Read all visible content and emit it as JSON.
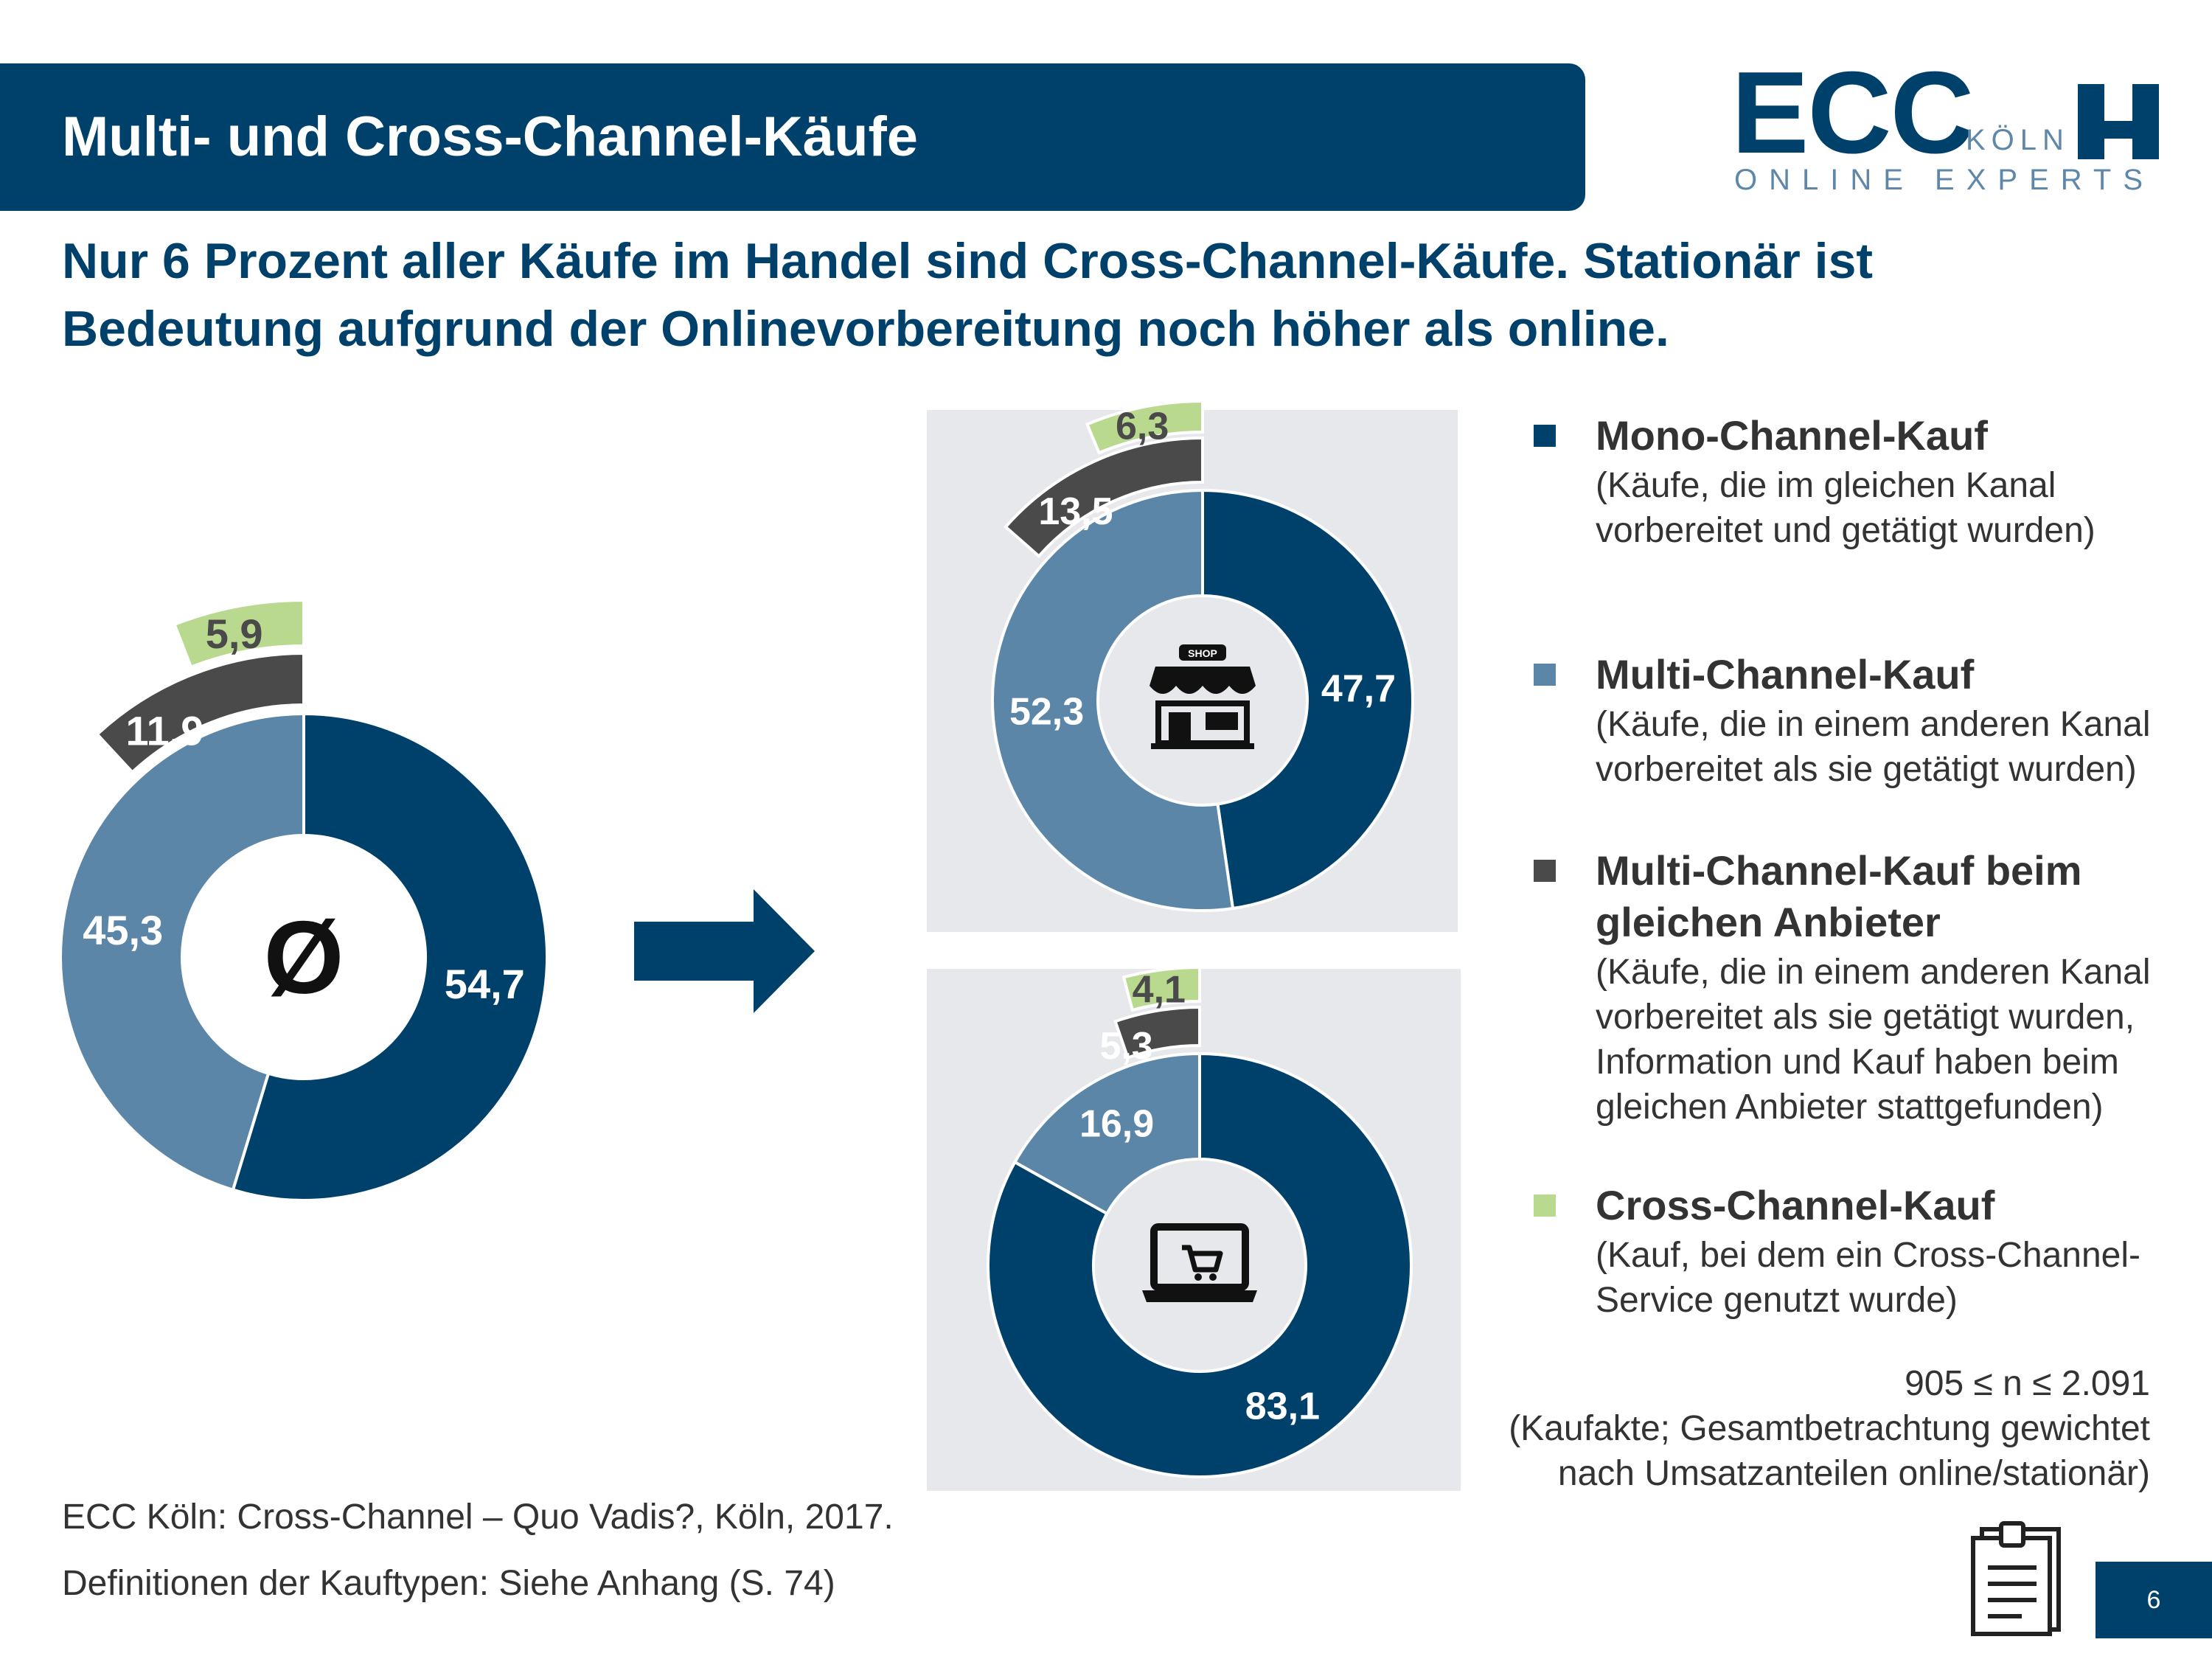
{
  "header": {
    "title": "Multi- und Cross-Channel-Käufe",
    "logo": {
      "brand": "ECC",
      "city": "KÖLN",
      "tagline": "ONLINE EXPERTS"
    }
  },
  "headline": {
    "line1": "Nur 6 Prozent aller Käufe im Handel sind Cross-Channel-Käufe. Stationär ist",
    "line2": "Bedeutung aufgrund der Onlinevorbereitung noch höher als online."
  },
  "colors": {
    "mono": "#00416b",
    "multi": "#5b86a8",
    "same_provider": "#4a4a4a",
    "cross": "#b9d98f",
    "panel": "#e6e8eb"
  },
  "chart_data": [
    {
      "type": "donut",
      "center_label": "Ø",
      "segments": [
        {
          "category": "Mono-Channel-Kauf",
          "value": 54.7,
          "label": "54,7"
        },
        {
          "category": "Multi-Channel-Kauf",
          "value": 45.3,
          "label": "45,3"
        }
      ],
      "outer_rings": [
        {
          "category": "Multi-Channel-Kauf beim gleichen Anbieter",
          "value": 11.9,
          "label": "11,9"
        },
        {
          "category": "Cross-Channel-Kauf",
          "value": 5.9,
          "label": "5,9"
        }
      ]
    },
    {
      "type": "donut",
      "center_icon": "shop-icon",
      "segments": [
        {
          "category": "Mono-Channel-Kauf",
          "value": 47.7,
          "label": "47,7"
        },
        {
          "category": "Multi-Channel-Kauf",
          "value": 52.3,
          "label": "52,3"
        }
      ],
      "outer_rings": [
        {
          "category": "Multi-Channel-Kauf beim gleichen Anbieter",
          "value": 13.5,
          "label": "13,5"
        },
        {
          "category": "Cross-Channel-Kauf",
          "value": 6.3,
          "label": "6,3"
        }
      ]
    },
    {
      "type": "donut",
      "center_icon": "laptop-cart-icon",
      "segments": [
        {
          "category": "Mono-Channel-Kauf",
          "value": 83.1,
          "label": "83,1"
        },
        {
          "category": "Multi-Channel-Kauf",
          "value": 16.9,
          "label": "16,9"
        }
      ],
      "outer_rings": [
        {
          "category": "Multi-Channel-Kauf beim gleichen Anbieter",
          "value": 5.3,
          "label": "5,3"
        },
        {
          "category": "Cross-Channel-Kauf",
          "value": 4.1,
          "label": "4,1"
        }
      ]
    }
  ],
  "legend": [
    {
      "title_lines": [
        "Mono-Channel-Kauf"
      ],
      "desc_lines": [
        "(Käufe, die im gleichen Kanal",
        "vorbereitet und getätigt wurden)"
      ]
    },
    {
      "title_lines": [
        "Multi-Channel-Kauf"
      ],
      "desc_lines": [
        "(Käufe, die in einem anderen Kanal",
        "vorbereitet als sie getätigt wurden)"
      ]
    },
    {
      "title_lines": [
        "Multi-Channel-Kauf beim",
        "gleichen Anbieter"
      ],
      "desc_lines": [
        "(Käufe, die in einem anderen Kanal",
        "vorbereitet als sie getätigt wurden,",
        "Information und Kauf haben beim",
        "gleichen Anbieter stattgefunden)"
      ]
    },
    {
      "title_lines": [
        "Cross-Channel-Kauf"
      ],
      "desc_lines": [
        "(Kauf, bei dem ein Cross-Channel-",
        "Service genutzt wurde)"
      ]
    }
  ],
  "note": {
    "line1": "905 ≤ n ≤ 2.091",
    "line2": "(Kaufakte; Gesamtbetrachtung gewichtet",
    "line3": "nach Umsatzanteilen online/stationär)"
  },
  "footer": {
    "source": "ECC Köln: Cross-Channel – Quo Vadis?, Köln, 2017.",
    "definitions": "Definitionen der Kauftypen: Siehe Anhang (S. 74)",
    "page_number": "6",
    "clipboard_icon": "clipboard-icon"
  }
}
